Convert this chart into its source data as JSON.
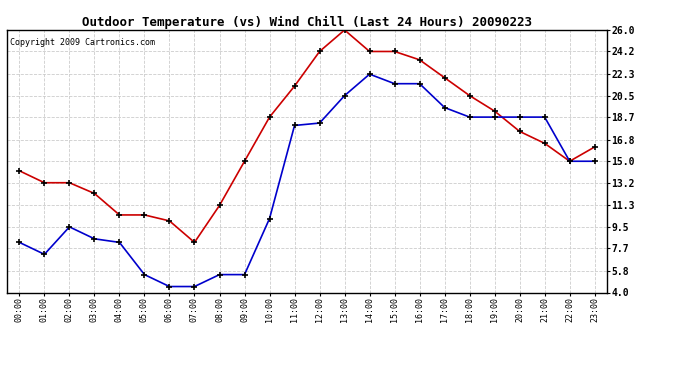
{
  "title": "Outdoor Temperature (vs) Wind Chill (Last 24 Hours) 20090223",
  "copyright": "Copyright 2009 Cartronics.com",
  "x_labels": [
    "00:00",
    "01:00",
    "02:00",
    "03:00",
    "04:00",
    "05:00",
    "06:00",
    "07:00",
    "08:00",
    "09:00",
    "10:00",
    "11:00",
    "12:00",
    "13:00",
    "14:00",
    "15:00",
    "16:00",
    "17:00",
    "18:00",
    "19:00",
    "20:00",
    "21:00",
    "22:00",
    "23:00"
  ],
  "red_data": [
    14.2,
    13.2,
    13.2,
    12.3,
    10.5,
    10.5,
    10.0,
    8.2,
    11.3,
    15.0,
    18.7,
    21.3,
    24.2,
    26.0,
    24.2,
    24.2,
    23.5,
    22.0,
    20.5,
    19.2,
    17.5,
    16.5,
    15.0,
    16.2
  ],
  "blue_data": [
    8.2,
    7.2,
    9.5,
    8.5,
    8.2,
    5.5,
    4.5,
    4.5,
    5.5,
    5.5,
    10.2,
    18.0,
    18.2,
    20.5,
    22.3,
    21.5,
    21.5,
    19.5,
    18.7,
    18.7,
    18.7,
    18.7,
    15.0,
    15.0
  ],
  "ylim_min": 4.0,
  "ylim_max": 26.0,
  "yticks": [
    4.0,
    5.8,
    7.7,
    9.5,
    11.3,
    13.2,
    15.0,
    16.8,
    18.7,
    20.5,
    22.3,
    24.2,
    26.0
  ],
  "background_color": "#ffffff",
  "grid_color": "#cccccc",
  "red_color": "#cc0000",
  "blue_color": "#0000cc",
  "title_fontsize": 9,
  "copyright_fontsize": 6,
  "xtick_fontsize": 6,
  "ytick_fontsize": 7
}
